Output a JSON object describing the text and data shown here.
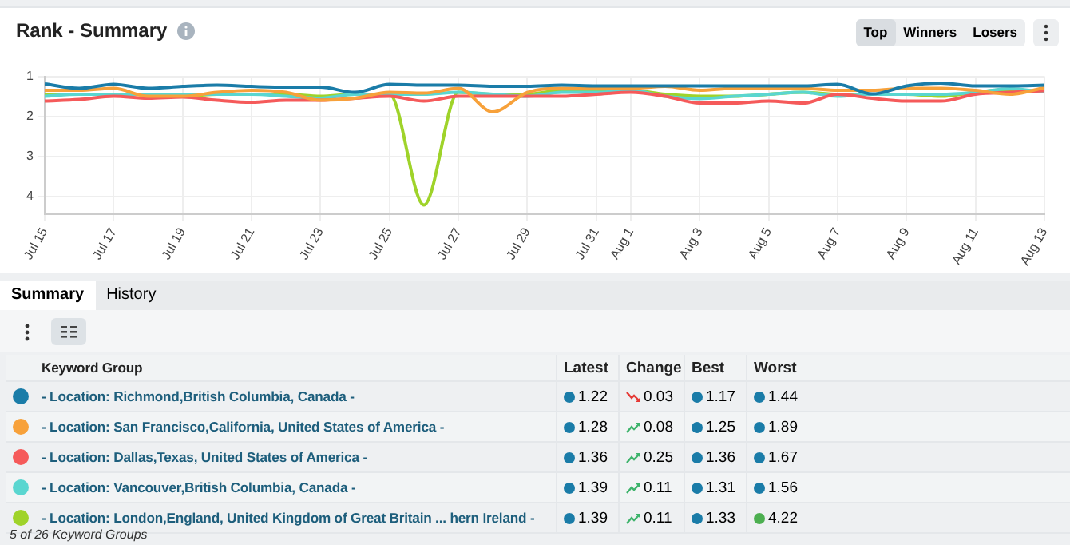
{
  "chart_data": {
    "type": "line",
    "title": "Rank - Summary",
    "x": [
      "--07-15",
      "--07-16",
      "--07-17",
      "--07-18",
      "--07-19",
      "--07-20",
      "--07-21",
      "--07-22",
      "--07-23",
      "--07-24",
      "--07-25",
      "--07-26",
      "--07-27",
      "--07-28",
      "--07-29",
      "--07-30",
      "--07-31",
      "--08-01",
      "--08-02",
      "--08-03",
      "--08-04",
      "--08-05",
      "--08-06",
      "--08-07",
      "--08-08",
      "--08-09",
      "--08-10",
      "--08-11",
      "--08-12",
      "--08-13"
    ],
    "series": [
      {
        "name": "- Location: Richmond,British Columbia, Canada -",
        "color": "#1a7ca8",
        "values": [
          1.19,
          1.3,
          1.2,
          1.3,
          1.25,
          1.22,
          1.25,
          1.27,
          1.27,
          1.4,
          1.2,
          1.22,
          1.22,
          1.25,
          1.25,
          1.22,
          1.24,
          1.24,
          1.24,
          1.24,
          1.24,
          1.24,
          1.24,
          1.2,
          1.44,
          1.24,
          1.17,
          1.24,
          1.24,
          1.22
        ]
      },
      {
        "name": "- Location: San Francisco,California, United States of America -",
        "color": "#f7a13a",
        "values": [
          1.35,
          1.35,
          1.3,
          1.5,
          1.5,
          1.4,
          1.35,
          1.4,
          1.6,
          1.55,
          1.4,
          1.42,
          1.3,
          1.89,
          1.4,
          1.3,
          1.3,
          1.3,
          1.25,
          1.35,
          1.3,
          1.3,
          1.3,
          1.35,
          1.35,
          1.3,
          1.3,
          1.35,
          1.45,
          1.28
        ]
      },
      {
        "name": "- Location: Dallas,Texas, United States of America -",
        "color": "#f55a5a",
        "values": [
          1.62,
          1.58,
          1.5,
          1.55,
          1.52,
          1.6,
          1.65,
          1.6,
          1.6,
          1.55,
          1.5,
          1.62,
          1.5,
          1.5,
          1.5,
          1.5,
          1.45,
          1.4,
          1.5,
          1.67,
          1.67,
          1.62,
          1.67,
          1.45,
          1.55,
          1.62,
          1.62,
          1.45,
          1.4,
          1.36
        ]
      },
      {
        "name": "- Location: Vancouver,British Columbia, Canada -",
        "color": "#5ad6d0",
        "values": [
          1.5,
          1.45,
          1.45,
          1.45,
          1.45,
          1.45,
          1.45,
          1.5,
          1.55,
          1.45,
          1.45,
          1.45,
          1.4,
          1.45,
          1.5,
          1.4,
          1.4,
          1.35,
          1.5,
          1.56,
          1.5,
          1.45,
          1.4,
          1.5,
          1.45,
          1.45,
          1.45,
          1.4,
          1.31,
          1.39
        ]
      },
      {
        "name": "- Location: London,England, United Kingdom of Great Britain ... hern Ireland -",
        "color": "#9fd32a",
        "values": [
          1.45,
          1.45,
          1.45,
          1.45,
          1.5,
          1.45,
          1.45,
          1.45,
          1.5,
          1.45,
          1.45,
          4.22,
          1.4,
          1.45,
          1.45,
          1.35,
          1.35,
          1.35,
          1.45,
          1.5,
          1.5,
          1.45,
          1.4,
          1.45,
          1.45,
          1.45,
          1.5,
          1.4,
          1.33,
          1.39
        ]
      }
    ],
    "xlim": [
      "--07-15",
      "--08-13"
    ],
    "xticks": [
      {
        "value": "--07-15",
        "label": "Jul 15"
      },
      {
        "value": "--07-17",
        "label": "Jul 17"
      },
      {
        "value": "--07-19",
        "label": "Jul 19"
      },
      {
        "value": "--07-21",
        "label": "Jul 21"
      },
      {
        "value": "--07-23",
        "label": "Jul 23"
      },
      {
        "value": "--07-25",
        "label": "Jul 25"
      },
      {
        "value": "--07-27",
        "label": "Jul 27"
      },
      {
        "value": "--07-29",
        "label": "Jul 29"
      },
      {
        "value": "--07-31",
        "label": "Jul 31"
      },
      {
        "value": "--08-01",
        "label": "Aug 1"
      },
      {
        "value": "--08-03",
        "label": "Aug 3"
      },
      {
        "value": "--08-05",
        "label": "Aug 5"
      },
      {
        "value": "--08-07",
        "label": "Aug 7"
      },
      {
        "value": "--08-09",
        "label": "Aug 9"
      },
      {
        "value": "--08-11",
        "label": "Aug 11"
      },
      {
        "value": "--08-13",
        "label": "Aug 13"
      }
    ],
    "ylim": [
      4.45,
      1
    ],
    "yticks": [
      1,
      2,
      3,
      4
    ],
    "grid": true,
    "legend": "bottom",
    "marker": "none",
    "line_style": "solid",
    "annotations": [
      "Top",
      "Winners",
      "Losers",
      "Summary",
      "History",
      "Keyword Group",
      "Latest",
      "Change",
      "Best",
      "Worst",
      "1.22",
      "0.03",
      "1.17",
      "1.44",
      "1.28",
      "0.08",
      "1.25",
      "1.89",
      "1.36",
      "0.25",
      "1.36",
      "1.67",
      "1.39",
      "0.11",
      "1.31",
      "1.56",
      "1.39",
      "0.11",
      "1.33",
      "4.22",
      "5 of 26 Keyword Groups"
    ]
  }
}
